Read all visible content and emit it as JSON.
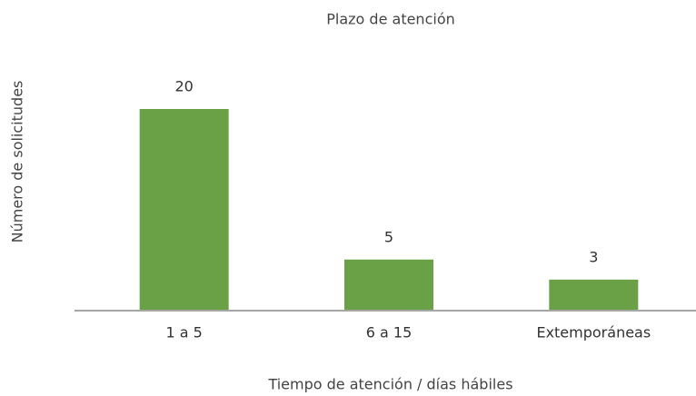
{
  "chart_data": {
    "type": "bar",
    "title": "Plazo de atención",
    "x_label": "Tiempo de atención / días hábiles",
    "y_label": "Número de solicitudes",
    "categories": [
      "1 a 5",
      "6 a 15",
      "Extemporáneas"
    ],
    "values": [
      20,
      5,
      3
    ],
    "color": "#6aa046"
  }
}
